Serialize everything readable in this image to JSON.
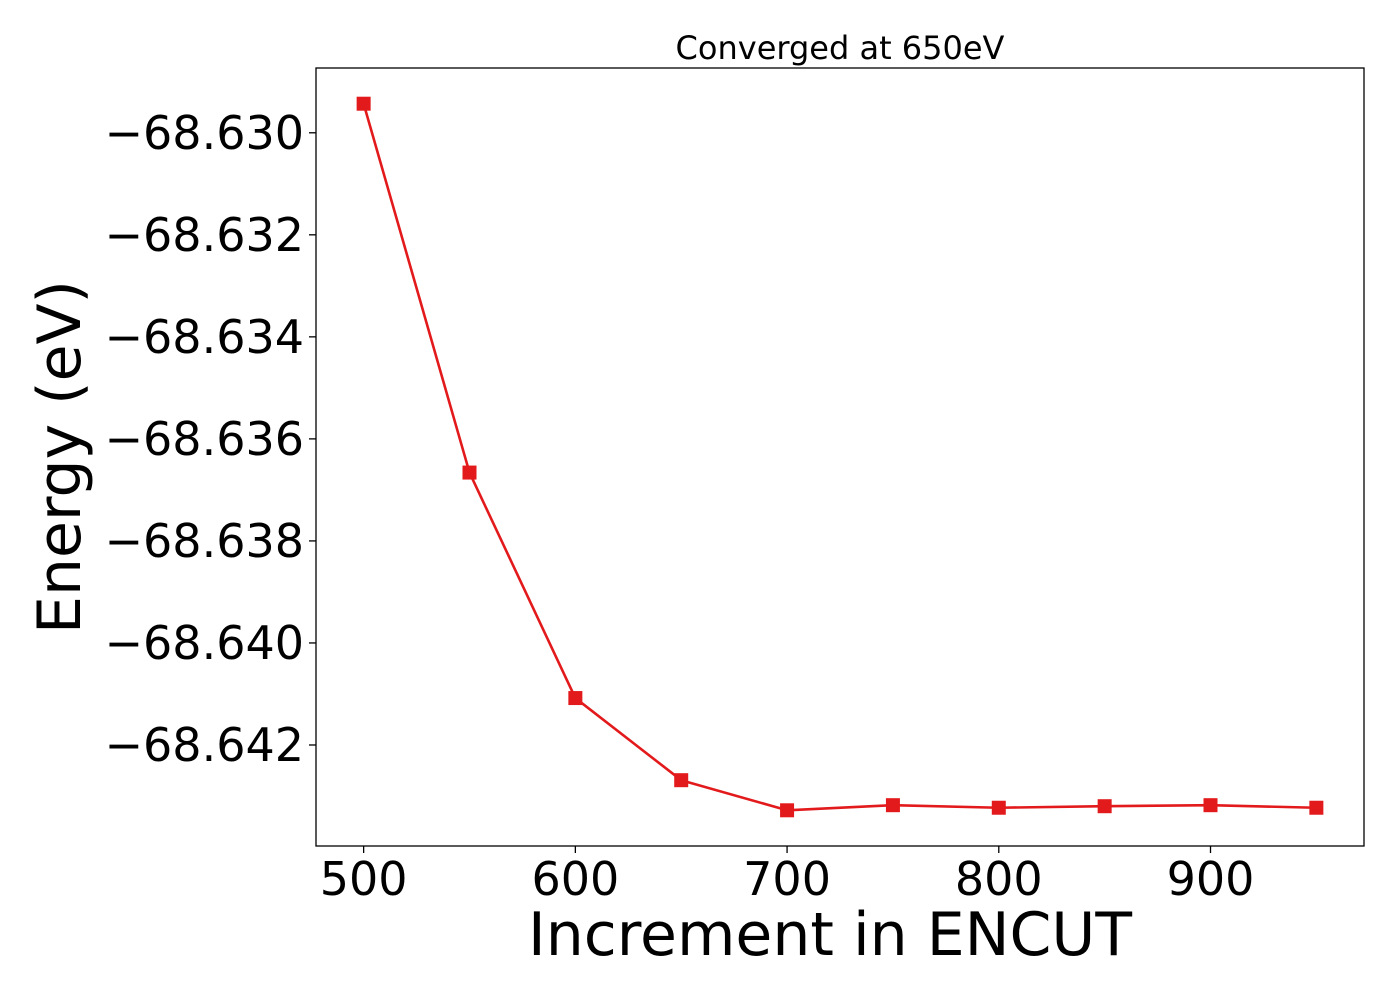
{
  "chart_data": {
    "type": "line",
    "title": "Converged at 650eV",
    "xlabel": "Increment in ENCUT",
    "ylabel": "Energy (eV)",
    "xlim": [
      477.5,
      972.5
    ],
    "ylim": [
      -68.64398,
      -68.62873
    ],
    "x_ticks": [
      500,
      600,
      700,
      800,
      900
    ],
    "y_ticks": [
      -68.63,
      -68.632,
      -68.634,
      -68.636,
      -68.638,
      -68.64,
      -68.642
    ],
    "y_tick_labels": [
      "−68.630",
      "−68.632",
      "−68.634",
      "−68.636",
      "−68.638",
      "−68.640",
      "−68.642"
    ],
    "grid": false,
    "legend": "none",
    "series": [
      {
        "color": "#e31a1c",
        "marker": "square",
        "x": [
          500,
          550,
          600,
          650,
          700,
          750,
          800,
          850,
          900,
          950
        ],
        "y": [
          -68.62943,
          -68.63666,
          -68.64108,
          -68.64269,
          -68.64328,
          -68.64318,
          -68.64323,
          -68.6432,
          -68.64318,
          -68.64323
        ]
      }
    ]
  }
}
